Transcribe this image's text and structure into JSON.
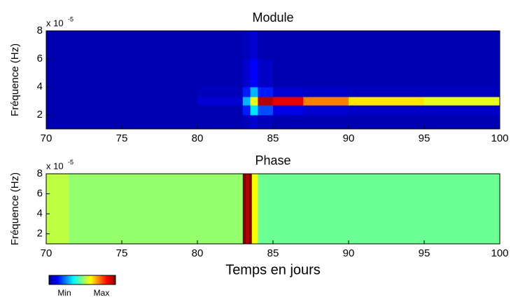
{
  "chart_data": [
    {
      "type": "heatmap",
      "title": "Module",
      "y_label": "Fréquence (Hz)",
      "y_multiplier": "x 10",
      "y_multiplier_exponent": "-5",
      "colormap": "jet",
      "clim": [
        0,
        1
      ],
      "xbins": [
        70,
        75,
        80,
        83,
        83.5,
        84,
        85,
        87,
        90,
        95,
        100
      ],
      "ybins": [
        1,
        2,
        2.7,
        3.3,
        4,
        6,
        8
      ],
      "values": [
        [
          0.05,
          0.05,
          0.05,
          0.06,
          0.08,
          0.06,
          0.05,
          0.05,
          0.05,
          0.05
        ],
        [
          0.05,
          0.05,
          0.05,
          0.15,
          0.35,
          0.2,
          0.1,
          0.08,
          0.07,
          0.07
        ],
        [
          0.05,
          0.05,
          0.08,
          0.3,
          0.6,
          0.95,
          0.9,
          0.75,
          0.65,
          0.6
        ],
        [
          0.05,
          0.05,
          0.06,
          0.15,
          0.3,
          0.15,
          0.08,
          0.07,
          0.06,
          0.06
        ],
        [
          0.05,
          0.05,
          0.05,
          0.08,
          0.12,
          0.07,
          0.05,
          0.05,
          0.05,
          0.05
        ],
        [
          0.05,
          0.05,
          0.05,
          0.06,
          0.08,
          0.05,
          0.05,
          0.05,
          0.05,
          0.05
        ]
      ],
      "xlim": [
        70,
        100
      ],
      "xticks": [
        70,
        75,
        80,
        85,
        90,
        95,
        100
      ],
      "ylim": [
        1,
        8
      ],
      "yticks": [
        2,
        4,
        6,
        8
      ]
    },
    {
      "type": "heatmap",
      "title": "Phase",
      "y_label": "Fréquence (Hz)",
      "y_multiplier": "x 10",
      "y_multiplier_exponent": "-5",
      "x_label": "Temps en jours",
      "colormap": "jet",
      "clim": [
        0,
        1
      ],
      "xbins": [
        70,
        71.5,
        83,
        83.2,
        83.4,
        83.6,
        84,
        100
      ],
      "ybins": [
        1,
        8
      ],
      "values": [
        [
          0.56,
          0.52,
          1,
          0.95,
          1,
          0.62,
          0.48
        ]
      ],
      "xlim": [
        70,
        100
      ],
      "xticks": [
        70,
        75,
        80,
        85,
        90,
        95,
        100
      ],
      "ylim": [
        1,
        8
      ],
      "yticks": [
        2,
        4,
        6,
        8
      ]
    }
  ],
  "colorbar": {
    "min_label": "Min",
    "max_label": "Max"
  }
}
